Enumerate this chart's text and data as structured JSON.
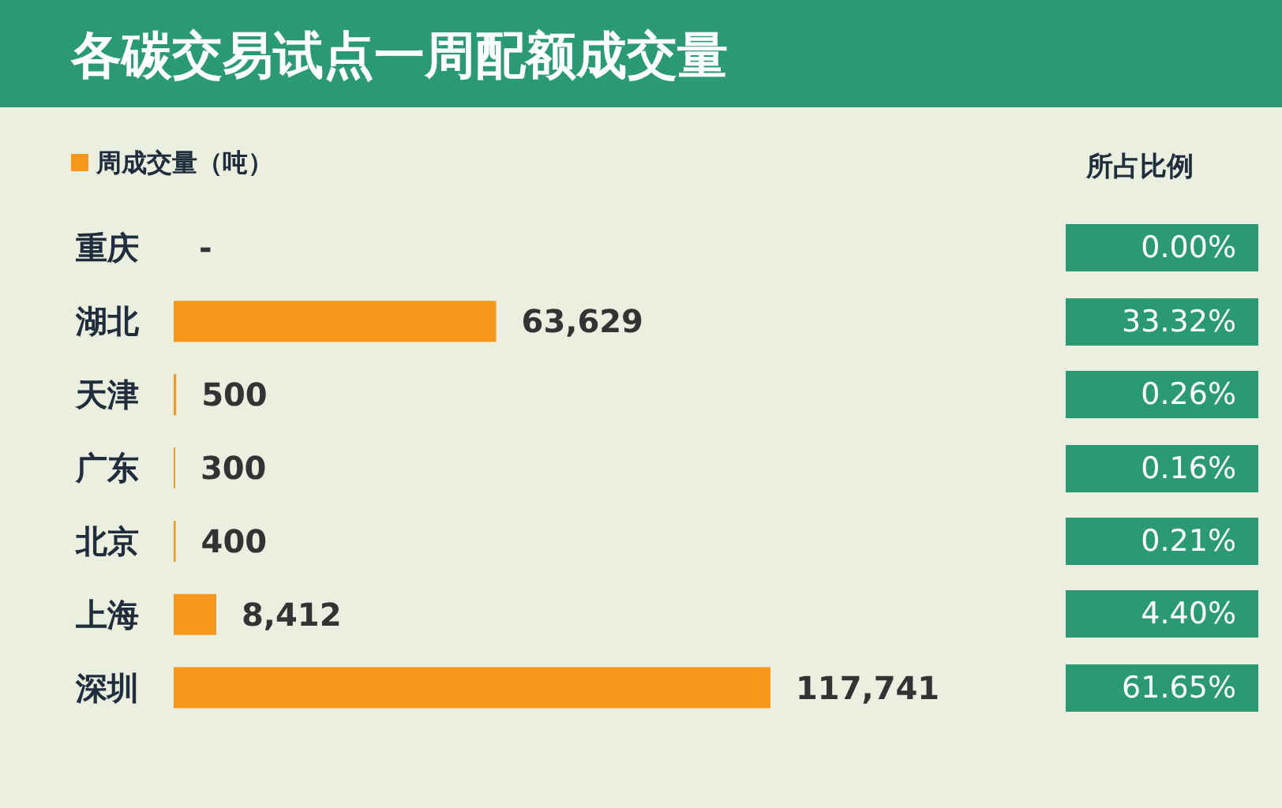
{
  "chart_data": [
    {
      "type": "bar",
      "title": "各碳交易试点一周配额成交量",
      "orientation": "horizontal",
      "categories": [
        "重庆",
        "湖北",
        "天津",
        "广东",
        "北京",
        "上海",
        "深圳"
      ],
      "series": [
        {
          "name": "周成交量（吨）",
          "color": "#f7981d",
          "values": [
            0,
            63629,
            500,
            300,
            400,
            8412,
            117741
          ],
          "value_labels": [
            "-",
            "63,629",
            "500",
            "300",
            "400",
            "8,412",
            "117,741"
          ]
        }
      ],
      "legend": "top left"
    },
    {
      "type": "other",
      "title": "所占比例",
      "color": "#2a9a74",
      "value_labels": [
        "0.00%",
        "33.32%",
        "0.26%",
        "0.16%",
        "0.21%",
        "4.40%",
        "61.65%"
      ]
    }
  ]
}
